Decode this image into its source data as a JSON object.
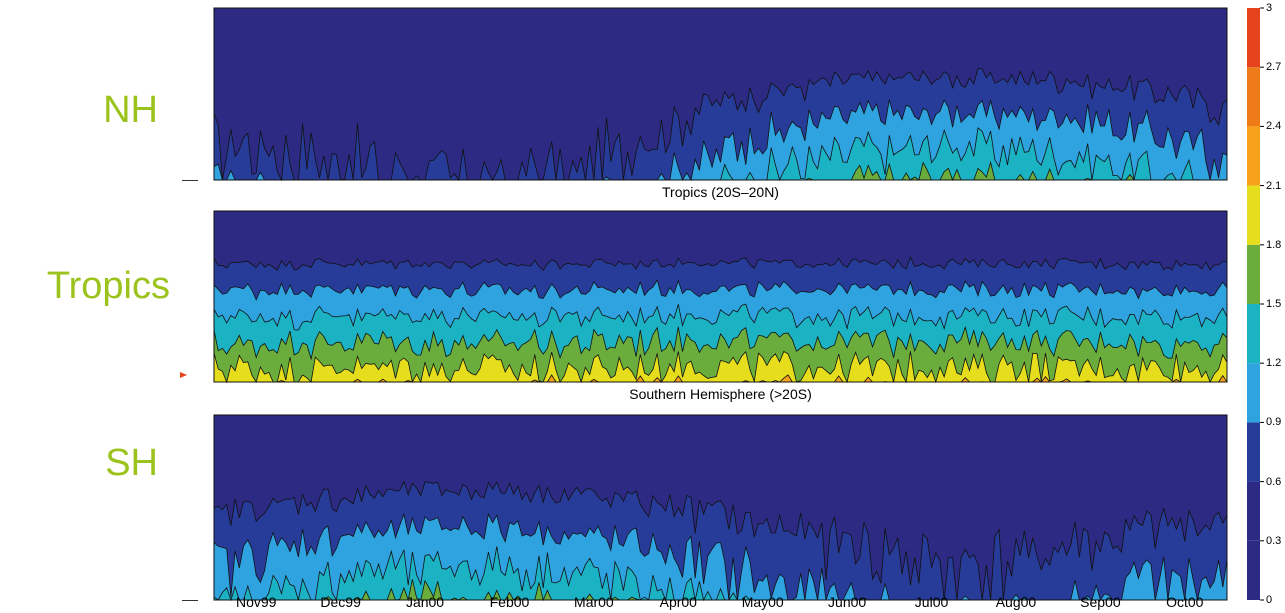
{
  "chart_data": {
    "type": "heatmap",
    "months": [
      "Nov99",
      "Dec99",
      "Jan00",
      "Feb00",
      "Mar00",
      "Apr00",
      "May00",
      "Jun00",
      "Jul00",
      "Aug00",
      "Sep00",
      "Oct00"
    ],
    "panels": [
      {
        "side_label": "NH",
        "title": "",
        "profile": [
          0.78,
          0.72,
          0.64,
          0.55,
          0.62,
          0.95,
          1.25,
          1.45,
          1.5,
          1.45,
          1.3,
          1.05
        ]
      },
      {
        "side_label": "Tropics",
        "title": "Tropics (20S–20N)",
        "profile": [
          1.95,
          1.95,
          1.98,
          1.95,
          1.95,
          2.0,
          1.98,
          1.97,
          1.98,
          1.98,
          1.95,
          1.95
        ]
      },
      {
        "side_label": "SH",
        "title": "Southern Hemisphere (>20S)",
        "profile": [
          1.1,
          1.3,
          1.45,
          1.5,
          1.4,
          1.2,
          1.0,
          0.85,
          0.75,
          0.8,
          0.95,
          1.05
        ]
      }
    ],
    "colorbar": {
      "min": 0,
      "max": 3,
      "tick_labels": [
        "0",
        "0.3",
        "0.6",
        "0.9",
        "1.2",
        "1.5",
        "1.8",
        "2.1",
        "2.4",
        "2.7",
        "3"
      ],
      "bands": [
        {
          "from": 0.0,
          "to": 0.3,
          "color": "#2d2a84"
        },
        {
          "from": 0.3,
          "to": 0.6,
          "color": "#2d2a84"
        },
        {
          "from": 0.6,
          "to": 0.9,
          "color": "#273c99"
        },
        {
          "from": 0.9,
          "to": 1.2,
          "color": "#2fa3e0"
        },
        {
          "from": 1.2,
          "to": 1.5,
          "color": "#1bb3c4"
        },
        {
          "from": 1.5,
          "to": 1.8,
          "color": "#6aad3c"
        },
        {
          "from": 1.8,
          "to": 2.1,
          "color": "#e6de1c"
        },
        {
          "from": 2.1,
          "to": 2.4,
          "color": "#f6a21b"
        },
        {
          "from": 2.4,
          "to": 2.7,
          "color": "#ee7a18"
        },
        {
          "from": 2.7,
          "to": 3.0,
          "color": "#e5431b"
        }
      ]
    }
  }
}
